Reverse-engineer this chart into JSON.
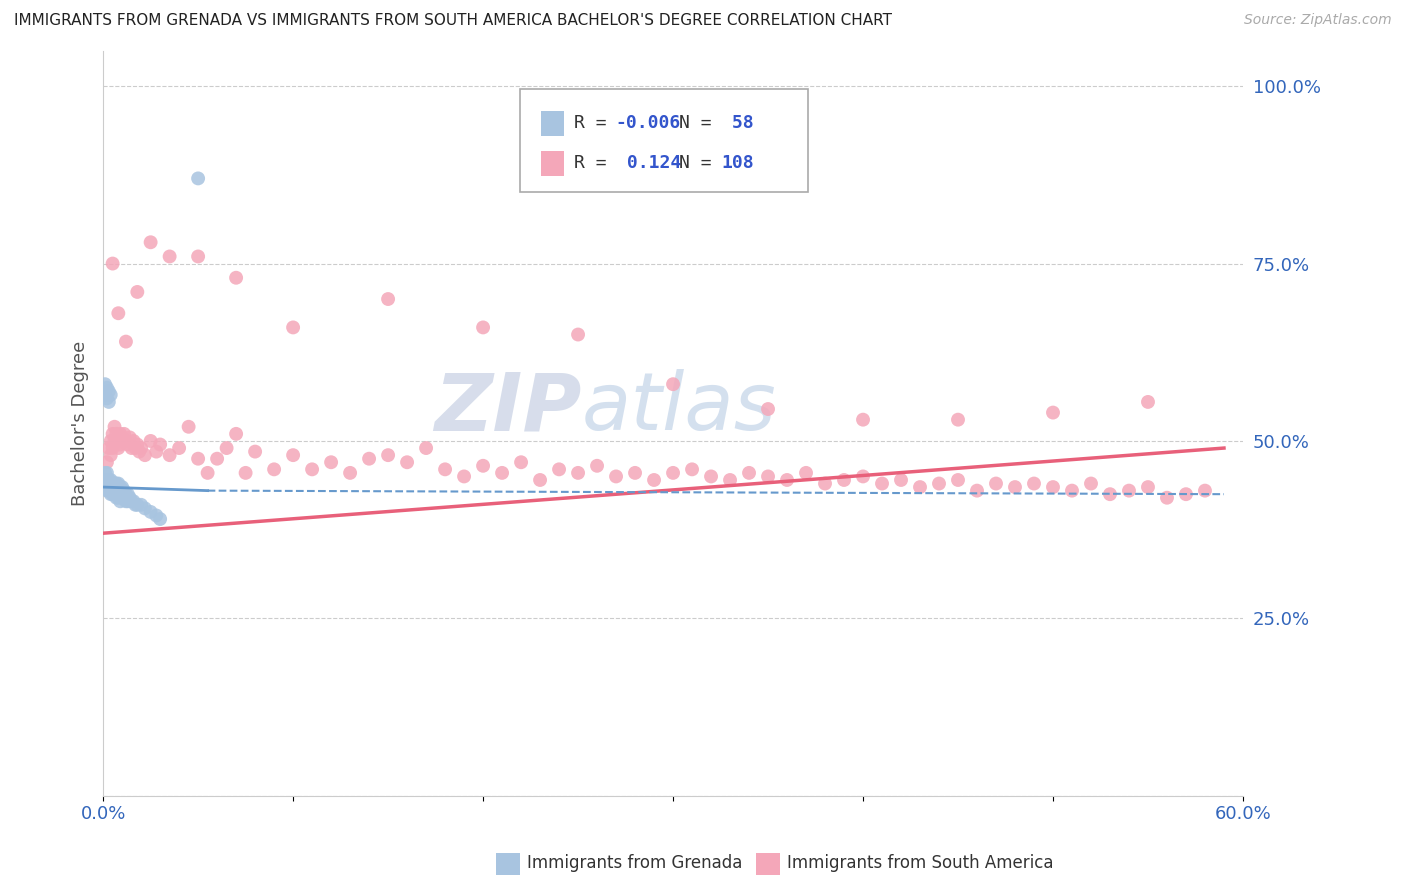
{
  "title": "IMMIGRANTS FROM GRENADA VS IMMIGRANTS FROM SOUTH AMERICA BACHELOR'S DEGREE CORRELATION CHART",
  "source": "Source: ZipAtlas.com",
  "xlabel_grenada": "Immigrants from Grenada",
  "xlabel_south_america": "Immigrants from South America",
  "ylabel": "Bachelor's Degree",
  "xmin": 0.0,
  "xmax": 0.6,
  "ymin": 0.0,
  "ymax": 1.05,
  "legend_r1": "-0.006",
  "legend_n1": "58",
  "legend_r2": "0.124",
  "legend_n2": "108",
  "color_grenada": "#a8c4e0",
  "color_south_america": "#f4a7b9",
  "trend_color_grenada": "#6699cc",
  "trend_color_south_america": "#e8607a",
  "background": "#ffffff",
  "grenada_x": [
    0.001,
    0.001,
    0.002,
    0.002,
    0.002,
    0.003,
    0.003,
    0.003,
    0.003,
    0.004,
    0.004,
    0.004,
    0.004,
    0.005,
    0.005,
    0.005,
    0.005,
    0.006,
    0.006,
    0.006,
    0.006,
    0.007,
    0.007,
    0.007,
    0.007,
    0.008,
    0.008,
    0.008,
    0.009,
    0.009,
    0.009,
    0.01,
    0.01,
    0.01,
    0.011,
    0.011,
    0.012,
    0.012,
    0.013,
    0.013,
    0.014,
    0.015,
    0.016,
    0.017,
    0.018,
    0.02,
    0.022,
    0.025,
    0.028,
    0.03,
    0.001,
    0.001,
    0.002,
    0.002,
    0.003,
    0.003,
    0.004,
    0.05
  ],
  "grenada_y": [
    0.455,
    0.435,
    0.455,
    0.445,
    0.43,
    0.445,
    0.445,
    0.44,
    0.43,
    0.445,
    0.44,
    0.435,
    0.425,
    0.44,
    0.44,
    0.435,
    0.425,
    0.44,
    0.44,
    0.435,
    0.425,
    0.44,
    0.435,
    0.43,
    0.42,
    0.44,
    0.435,
    0.42,
    0.435,
    0.43,
    0.415,
    0.435,
    0.43,
    0.42,
    0.43,
    0.42,
    0.425,
    0.415,
    0.425,
    0.415,
    0.42,
    0.415,
    0.415,
    0.41,
    0.41,
    0.41,
    0.405,
    0.4,
    0.395,
    0.39,
    0.58,
    0.565,
    0.575,
    0.56,
    0.57,
    0.555,
    0.565,
    0.87
  ],
  "south_america_x": [
    0.002,
    0.003,
    0.004,
    0.004,
    0.005,
    0.005,
    0.006,
    0.006,
    0.007,
    0.007,
    0.008,
    0.008,
    0.009,
    0.009,
    0.01,
    0.01,
    0.011,
    0.012,
    0.013,
    0.014,
    0.015,
    0.016,
    0.017,
    0.018,
    0.019,
    0.02,
    0.022,
    0.025,
    0.028,
    0.03,
    0.035,
    0.04,
    0.045,
    0.05,
    0.055,
    0.06,
    0.065,
    0.07,
    0.075,
    0.08,
    0.09,
    0.1,
    0.11,
    0.12,
    0.13,
    0.14,
    0.15,
    0.16,
    0.17,
    0.18,
    0.19,
    0.2,
    0.21,
    0.22,
    0.23,
    0.24,
    0.25,
    0.26,
    0.27,
    0.28,
    0.29,
    0.3,
    0.31,
    0.32,
    0.33,
    0.34,
    0.35,
    0.36,
    0.37,
    0.38,
    0.39,
    0.4,
    0.41,
    0.42,
    0.43,
    0.44,
    0.45,
    0.46,
    0.47,
    0.48,
    0.49,
    0.5,
    0.51,
    0.52,
    0.53,
    0.54,
    0.55,
    0.56,
    0.57,
    0.58,
    0.005,
    0.008,
    0.012,
    0.018,
    0.025,
    0.035,
    0.05,
    0.07,
    0.1,
    0.15,
    0.2,
    0.25,
    0.3,
    0.35,
    0.4,
    0.45,
    0.5,
    0.55
  ],
  "south_america_y": [
    0.47,
    0.49,
    0.48,
    0.5,
    0.51,
    0.49,
    0.5,
    0.52,
    0.51,
    0.5,
    0.49,
    0.505,
    0.495,
    0.51,
    0.505,
    0.5,
    0.51,
    0.5,
    0.495,
    0.505,
    0.49,
    0.5,
    0.49,
    0.495,
    0.485,
    0.49,
    0.48,
    0.5,
    0.485,
    0.495,
    0.48,
    0.49,
    0.52,
    0.475,
    0.455,
    0.475,
    0.49,
    0.51,
    0.455,
    0.485,
    0.46,
    0.48,
    0.46,
    0.47,
    0.455,
    0.475,
    0.48,
    0.47,
    0.49,
    0.46,
    0.45,
    0.465,
    0.455,
    0.47,
    0.445,
    0.46,
    0.455,
    0.465,
    0.45,
    0.455,
    0.445,
    0.455,
    0.46,
    0.45,
    0.445,
    0.455,
    0.45,
    0.445,
    0.455,
    0.44,
    0.445,
    0.45,
    0.44,
    0.445,
    0.435,
    0.44,
    0.445,
    0.43,
    0.44,
    0.435,
    0.44,
    0.435,
    0.43,
    0.44,
    0.425,
    0.43,
    0.435,
    0.42,
    0.425,
    0.43,
    0.75,
    0.68,
    0.64,
    0.71,
    0.78,
    0.76,
    0.76,
    0.73,
    0.66,
    0.7,
    0.66,
    0.65,
    0.58,
    0.545,
    0.53,
    0.53,
    0.54,
    0.555
  ],
  "trend_grenada_x0": 0.0,
  "trend_grenada_x1": 0.055,
  "trend_grenada_y0": 0.435,
  "trend_grenada_y1": 0.43,
  "trend_grenada_dash_x0": 0.055,
  "trend_grenada_dash_x1": 0.59,
  "trend_grenada_dash_y0": 0.43,
  "trend_grenada_dash_y1": 0.425,
  "trend_sa_x0": 0.0,
  "trend_sa_x1": 0.59,
  "trend_sa_y0": 0.37,
  "trend_sa_y1": 0.49
}
